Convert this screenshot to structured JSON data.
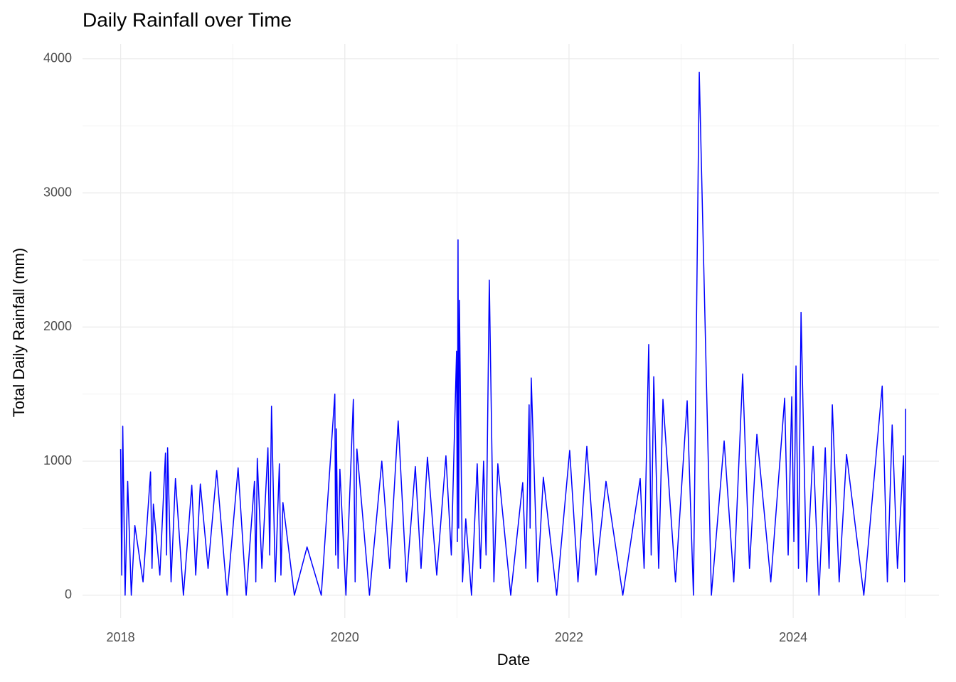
{
  "chart_data": {
    "type": "line",
    "title": "Daily Rainfall over Time",
    "x_label": "Date",
    "y_label": "Total Daily Rainfall (mm)",
    "grid": true,
    "xlim": [
      2017.66,
      2025.3
    ],
    "ylim": [
      -170,
      4110
    ],
    "xticks": [
      2018,
      2020,
      2022,
      2024
    ],
    "yticks": [
      0,
      1000,
      2000,
      3000,
      4000
    ],
    "x_minor_grid": [
      2019,
      2021,
      2023,
      2025
    ],
    "y_minor_grid": [
      500,
      1500,
      2500,
      3500
    ],
    "series": [
      {
        "color": "#0000ff",
        "x": [
          2018.0,
          2018.01,
          2018.019,
          2018.04,
          2018.063,
          2018.095,
          2018.127,
          2018.2,
          2018.267,
          2018.28,
          2018.292,
          2018.35,
          2018.4,
          2018.41,
          2018.419,
          2018.45,
          2018.489,
          2018.56,
          2018.635,
          2018.67,
          2018.711,
          2018.78,
          2018.857,
          2018.95,
          2019.048,
          2019.12,
          2019.194,
          2019.206,
          2019.219,
          2019.26,
          2019.314,
          2019.33,
          2019.346,
          2019.38,
          2019.416,
          2019.43,
          2019.448,
          2019.55,
          2019.663,
          2019.79,
          2019.911,
          2019.918,
          2019.924,
          2019.94,
          2019.956,
          2020.01,
          2020.076,
          2020.092,
          2020.108,
          2020.22,
          2020.33,
          2020.4,
          2020.476,
          2020.55,
          2020.629,
          2020.68,
          2020.737,
          2020.82,
          2020.902,
          2020.95,
          2020.997,
          2021.004,
          2021.01,
          2021.016,
          2021.022,
          2021.05,
          2021.079,
          2021.13,
          2021.181,
          2021.21,
          2021.238,
          2021.26,
          2021.289,
          2021.33,
          2021.365,
          2021.48,
          2021.587,
          2021.615,
          2021.644,
          2021.653,
          2021.663,
          2021.72,
          2021.771,
          2021.89,
          2022.006,
          2022.08,
          2022.159,
          2022.24,
          2022.33,
          2022.48,
          2022.635,
          2022.67,
          2022.711,
          2022.733,
          2022.756,
          2022.8,
          2022.838,
          2022.95,
          2023.054,
          2023.11,
          2023.162,
          2023.27,
          2023.384,
          2023.47,
          2023.549,
          2023.61,
          2023.676,
          2023.8,
          2023.924,
          2023.955,
          2023.987,
          2024.006,
          2024.025,
          2024.047,
          2024.07,
          2024.12,
          2024.178,
          2024.23,
          2024.286,
          2024.32,
          2024.349,
          2024.41,
          2024.476,
          2024.63,
          2024.794,
          2024.84,
          2024.883,
          2024.93,
          2024.984,
          2024.994,
          2025.003
        ],
        "values": [
          1090,
          150,
          1260,
          0,
          850,
          0,
          520,
          100,
          920,
          200,
          680,
          150,
          1060,
          300,
          1100,
          100,
          870,
          0,
          820,
          150,
          830,
          200,
          930,
          0,
          950,
          0,
          850,
          100,
          1020,
          200,
          1100,
          300,
          1410,
          100,
          980,
          150,
          690,
          0,
          360,
          0,
          1500,
          300,
          1240,
          200,
          940,
          0,
          1460,
          100,
          1090,
          0,
          1000,
          200,
          1300,
          100,
          960,
          200,
          1030,
          150,
          1040,
          300,
          1820,
          400,
          2650,
          500,
          2200,
          100,
          570,
          0,
          980,
          200,
          1000,
          300,
          2350,
          100,
          980,
          0,
          840,
          200,
          1420,
          500,
          1620,
          100,
          880,
          0,
          1080,
          100,
          1110,
          150,
          850,
          0,
          870,
          200,
          1870,
          300,
          1630,
          200,
          1460,
          100,
          1450,
          0,
          3900,
          0,
          1150,
          100,
          1650,
          200,
          1200,
          100,
          1470,
          300,
          1480,
          400,
          1710,
          200,
          2110,
          100,
          1110,
          0,
          1100,
          200,
          1420,
          100,
          1050,
          0,
          1560,
          100,
          1270,
          200,
          1040,
          100,
          1390
        ]
      }
    ]
  }
}
